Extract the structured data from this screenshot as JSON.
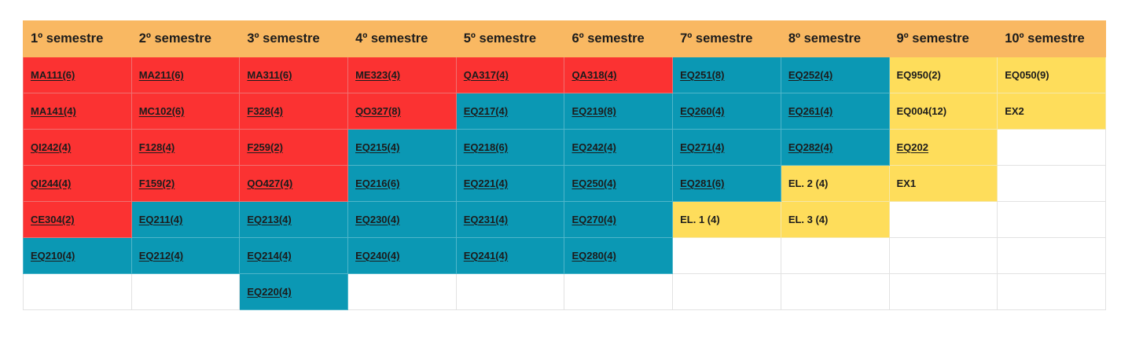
{
  "headers": [
    "1º semestre",
    "2º semestre",
    "3º semestre",
    "4º semestre",
    "5º semestre",
    "6º semestre",
    "7º semestre",
    "8º semestre",
    "9º semestre",
    "10º semestre"
  ],
  "colors": {
    "header": "#f9b862",
    "red": "#fb3232",
    "blue": "#0b98b4",
    "yellow": "#fedd5b"
  },
  "rows": [
    [
      {
        "text": "MA111(6)",
        "color": "red",
        "link": true
      },
      {
        "text": "MA211(6)",
        "color": "red",
        "link": true
      },
      {
        "text": "MA311(6)",
        "color": "red",
        "link": true
      },
      {
        "text": "ME323(4)",
        "color": "red",
        "link": true
      },
      {
        "text": "QA317(4)",
        "color": "red",
        "link": true
      },
      {
        "text": "QA318(4)",
        "color": "red",
        "link": true
      },
      {
        "text": "EQ251(8)",
        "color": "blue",
        "link": true
      },
      {
        "text": "EQ252(4)",
        "color": "blue",
        "link": true
      },
      {
        "text": "EQ950(2)",
        "color": "yellow",
        "link": false
      },
      {
        "text": "EQ050(9)",
        "color": "yellow",
        "link": false
      }
    ],
    [
      {
        "text": "MA141(4)",
        "color": "red",
        "link": true
      },
      {
        "text": "MC102(6)",
        "color": "red",
        "link": true
      },
      {
        "text": "F328(4)",
        "color": "red",
        "link": true
      },
      {
        "text": "QO327(8)",
        "color": "red",
        "link": true
      },
      {
        "text": "EQ217(4)",
        "color": "blue",
        "link": true
      },
      {
        "text": "EQ219(8)",
        "color": "blue",
        "link": true
      },
      {
        "text": "EQ260(4)",
        "color": "blue",
        "link": true
      },
      {
        "text": "EQ261(4)",
        "color": "blue",
        "link": true
      },
      {
        "text": "EQ004(12)",
        "color": "yellow",
        "link": false
      },
      {
        "text": "EX2",
        "color": "yellow",
        "link": false
      }
    ],
    [
      {
        "text": "QI242(4)",
        "color": "red",
        "link": true
      },
      {
        "text": "F128(4)",
        "color": "red",
        "link": true
      },
      {
        "text": "F259(2)",
        "color": "red",
        "link": true
      },
      {
        "text": "EQ215(4)",
        "color": "blue",
        "link": true
      },
      {
        "text": "EQ218(6)",
        "color": "blue",
        "link": true
      },
      {
        "text": "EQ242(4)",
        "color": "blue",
        "link": true
      },
      {
        "text": "EQ271(4)",
        "color": "blue",
        "link": true
      },
      {
        "text": "EQ282(4)",
        "color": "blue",
        "link": true
      },
      {
        "text": "EQ202",
        "color": "yellow",
        "link": true
      },
      {
        "text": "",
        "color": "empty",
        "link": false
      }
    ],
    [
      {
        "text": "QI244(4)",
        "color": "red",
        "link": true
      },
      {
        "text": "F159(2)",
        "color": "red",
        "link": true
      },
      {
        "text": "QO427(4)",
        "color": "red",
        "link": true
      },
      {
        "text": "EQ216(6)",
        "color": "blue",
        "link": true
      },
      {
        "text": "EQ221(4)",
        "color": "blue",
        "link": true
      },
      {
        "text": "EQ250(4)",
        "color": "blue",
        "link": true
      },
      {
        "text": "EQ281(6)",
        "color": "blue",
        "link": true
      },
      {
        "text": "EL. 2 (4)",
        "color": "yellow",
        "link": false
      },
      {
        "text": "EX1",
        "color": "yellow",
        "link": false
      },
      {
        "text": "",
        "color": "empty",
        "link": false
      }
    ],
    [
      {
        "text": "CE304(2)",
        "color": "red",
        "link": true
      },
      {
        "text": "EQ211(4)",
        "color": "blue",
        "link": true
      },
      {
        "text": "EQ213(4)",
        "color": "blue",
        "link": true
      },
      {
        "text": "EQ230(4)",
        "color": "blue",
        "link": true
      },
      {
        "text": "EQ231(4)",
        "color": "blue",
        "link": true
      },
      {
        "text": "EQ270(4)",
        "color": "blue",
        "link": true
      },
      {
        "text": "EL. 1 (4)",
        "color": "yellow",
        "link": false
      },
      {
        "text": "EL. 3 (4)",
        "color": "yellow",
        "link": false
      },
      {
        "text": "",
        "color": "empty",
        "link": false
      },
      {
        "text": "",
        "color": "empty",
        "link": false
      }
    ],
    [
      {
        "text": "EQ210(4)",
        "color": "blue",
        "link": true
      },
      {
        "text": "EQ212(4)",
        "color": "blue",
        "link": true
      },
      {
        "text": "EQ214(4)",
        "color": "blue",
        "link": true
      },
      {
        "text": "EQ240(4)",
        "color": "blue",
        "link": true
      },
      {
        "text": "EQ241(4)",
        "color": "blue",
        "link": true
      },
      {
        "text": "EQ280(4)",
        "color": "blue",
        "link": true
      },
      {
        "text": "",
        "color": "empty",
        "link": false
      },
      {
        "text": "",
        "color": "empty",
        "link": false
      },
      {
        "text": "",
        "color": "empty",
        "link": false
      },
      {
        "text": "",
        "color": "empty",
        "link": false
      }
    ],
    [
      {
        "text": "",
        "color": "empty",
        "link": false
      },
      {
        "text": "",
        "color": "empty",
        "link": false
      },
      {
        "text": "EQ220(4)",
        "color": "blue",
        "link": true
      },
      {
        "text": "",
        "color": "empty",
        "link": false
      },
      {
        "text": "",
        "color": "empty",
        "link": false
      },
      {
        "text": "",
        "color": "empty",
        "link": false
      },
      {
        "text": "",
        "color": "empty",
        "link": false
      },
      {
        "text": "",
        "color": "empty",
        "link": false
      },
      {
        "text": "",
        "color": "empty",
        "link": false
      },
      {
        "text": "",
        "color": "empty",
        "link": false
      }
    ]
  ]
}
